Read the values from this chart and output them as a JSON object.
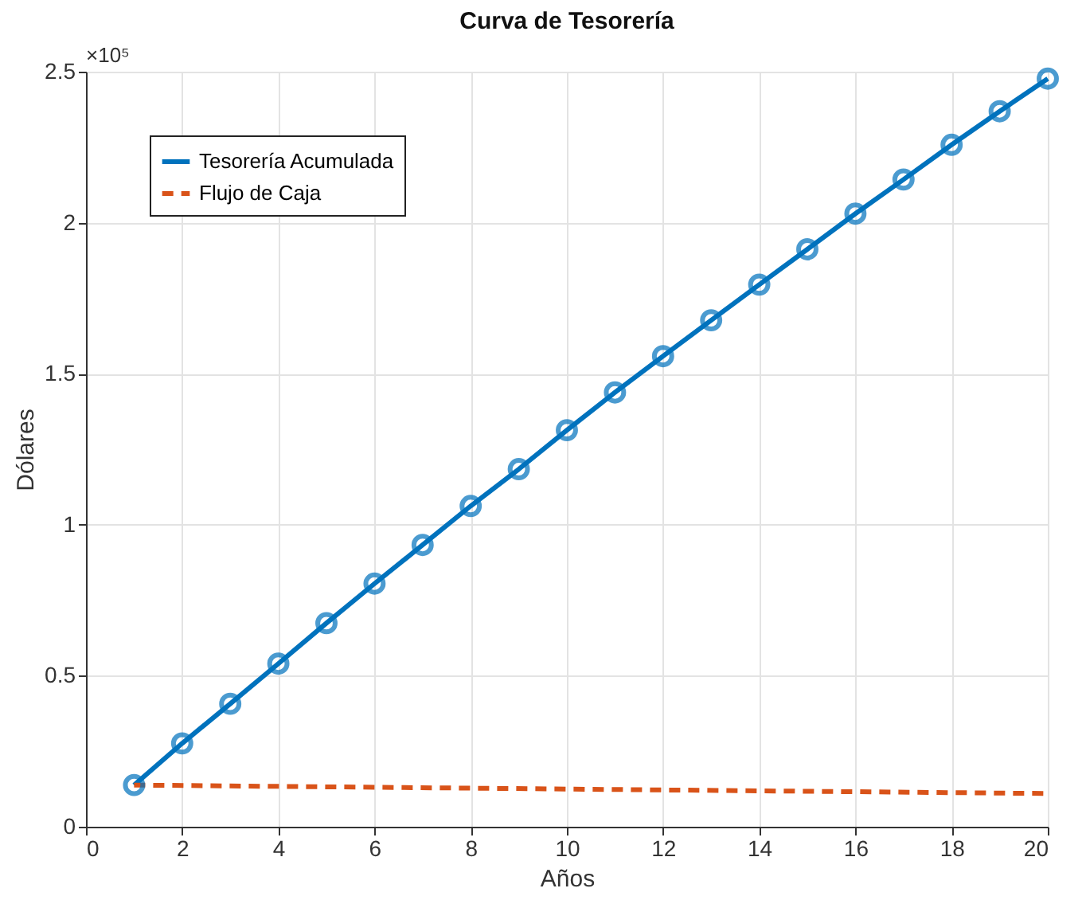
{
  "chart_data": {
    "type": "line",
    "title": "Curva de Tesorería",
    "xlabel": "Años",
    "ylabel": "Dólares",
    "annotations": [
      "×10⁵"
    ],
    "xlim": [
      0,
      20
    ],
    "xticks": [
      0,
      2,
      4,
      6,
      8,
      10,
      12,
      14,
      16,
      18,
      20
    ],
    "ylim": [
      0,
      2.5
    ],
    "yticks": [
      0,
      0.5,
      1,
      1.5,
      2,
      2.5
    ],
    "grid": true,
    "legend": "top left",
    "series": [
      {
        "name": "Tesorería Acumulada",
        "color": "#0072bd",
        "marker": "circle",
        "line_style": "solid",
        "x": [
          1,
          2,
          3,
          4,
          5,
          6,
          7,
          8,
          9,
          10,
          11,
          12,
          13,
          14,
          15,
          16,
          17,
          18,
          19,
          20
        ],
        "values": [
          0.138,
          0.276,
          0.407,
          0.54,
          0.674,
          0.805,
          0.933,
          1.062,
          1.184,
          1.313,
          1.438,
          1.558,
          1.677,
          1.795,
          1.912,
          2.03,
          2.143,
          2.258,
          2.369,
          2.477
        ]
      },
      {
        "name": "Flujo de Caja",
        "color": "#d95319",
        "marker": "none",
        "line_style": "dashed",
        "x": [
          1,
          20
        ],
        "values": [
          0.138,
          0.11
        ]
      }
    ]
  }
}
